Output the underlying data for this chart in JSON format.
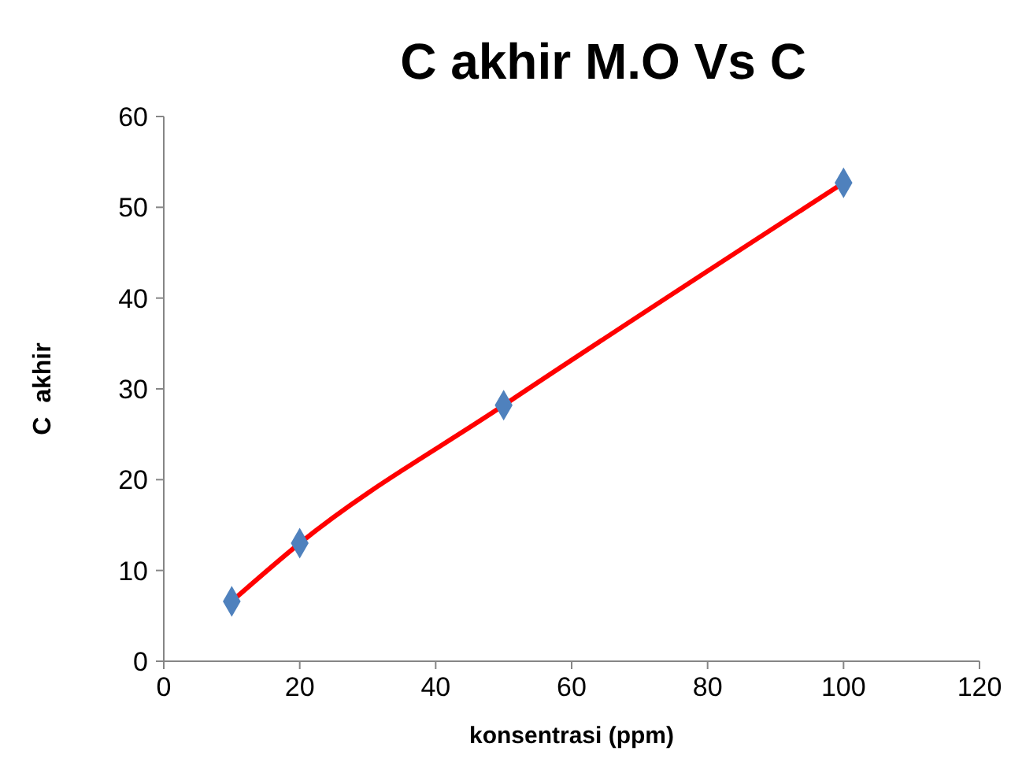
{
  "chart_data": {
    "type": "scatter",
    "title": "C akhir M.O Vs C",
    "xlabel": "konsentrasi (ppm)",
    "ylabel": "C  akhir",
    "x": [
      10,
      20,
      50,
      100
    ],
    "series": [
      {
        "type": "line",
        "color": "#ff0000",
        "values": [
          6.6,
          13.0,
          28.2,
          52.7
        ],
        "marker": "none"
      },
      {
        "color": "#4f81bd",
        "values": [
          6.6,
          13.0,
          28.2,
          52.7
        ],
        "marker": "diamond"
      }
    ],
    "xlim": [
      0,
      120
    ],
    "xticks": [
      0,
      20,
      40,
      60,
      80,
      100,
      120
    ],
    "ylim": [
      0,
      60
    ],
    "yticks": [
      0,
      10,
      20,
      30,
      40,
      50,
      60
    ]
  }
}
